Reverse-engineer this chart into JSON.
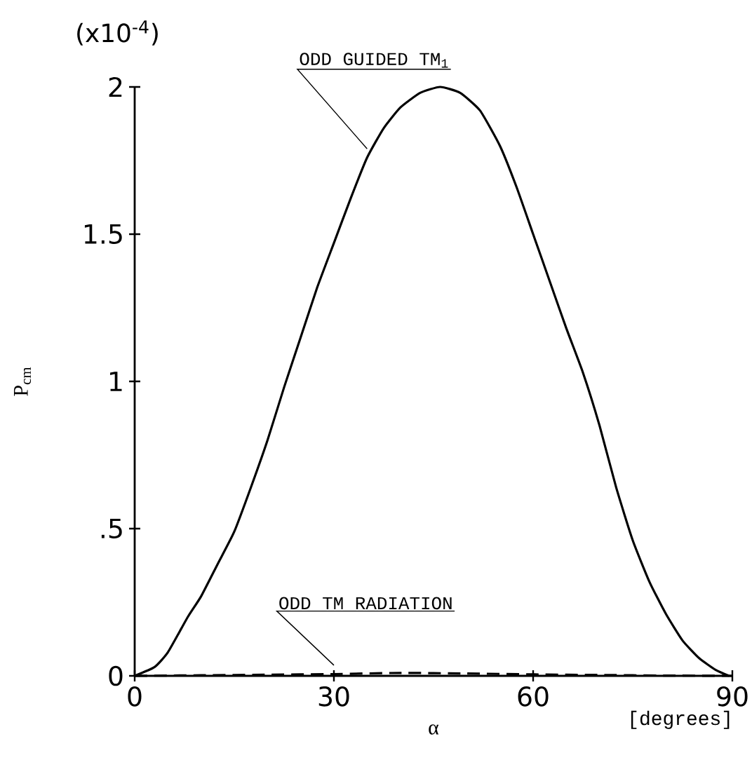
{
  "chart_data": {
    "type": "line",
    "xlabel": "α",
    "ylabel": "P$_{cm}$",
    "annotations": [
      "(x10$^{-4}$)",
      "[degrees]"
    ],
    "xlim": [
      0,
      90
    ],
    "ylim": [
      0,
      2
    ],
    "xticks": [
      0,
      30,
      60,
      90
    ],
    "yticks": [
      0,
      {
        "value": 0.5,
        "label": ".5"
      },
      1,
      1.5,
      2
    ],
    "grid": false,
    "marker": "none",
    "series": [
      {
        "name": "ODD GUIDED TM$_{1}$",
        "color": "#000000",
        "line_style": "solid",
        "x": [
          0,
          3,
          5,
          8,
          10,
          12.5,
          15,
          17.5,
          20,
          22.5,
          25,
          27.5,
          30,
          32.5,
          35,
          37.5,
          40,
          43,
          46,
          49,
          52,
          55,
          57.5,
          60,
          62.5,
          65,
          67.5,
          70,
          72.5,
          75,
          77.5,
          80,
          82.5,
          85,
          87.5,
          89.5
        ],
        "values": [
          0,
          0.03,
          0.08,
          0.2,
          0.27,
          0.38,
          0.49,
          0.64,
          0.8,
          0.98,
          1.15,
          1.32,
          1.47,
          1.62,
          1.76,
          1.86,
          1.93,
          1.98,
          2.0,
          1.98,
          1.92,
          1.8,
          1.66,
          1.5,
          1.34,
          1.18,
          1.03,
          0.85,
          0.64,
          0.46,
          0.32,
          0.21,
          0.12,
          0.06,
          0.02,
          0
        ]
      },
      {
        "name": "ODD TM RADIATION",
        "color": "#000000",
        "line_style": "dashed",
        "x": [
          0,
          10,
          20,
          30,
          40,
          50,
          60,
          70,
          80,
          90
        ],
        "values": [
          0,
          0.002,
          0.004,
          0.006,
          0.01,
          0.008,
          0.005,
          0.003,
          0.001,
          0
        ]
      }
    ]
  }
}
